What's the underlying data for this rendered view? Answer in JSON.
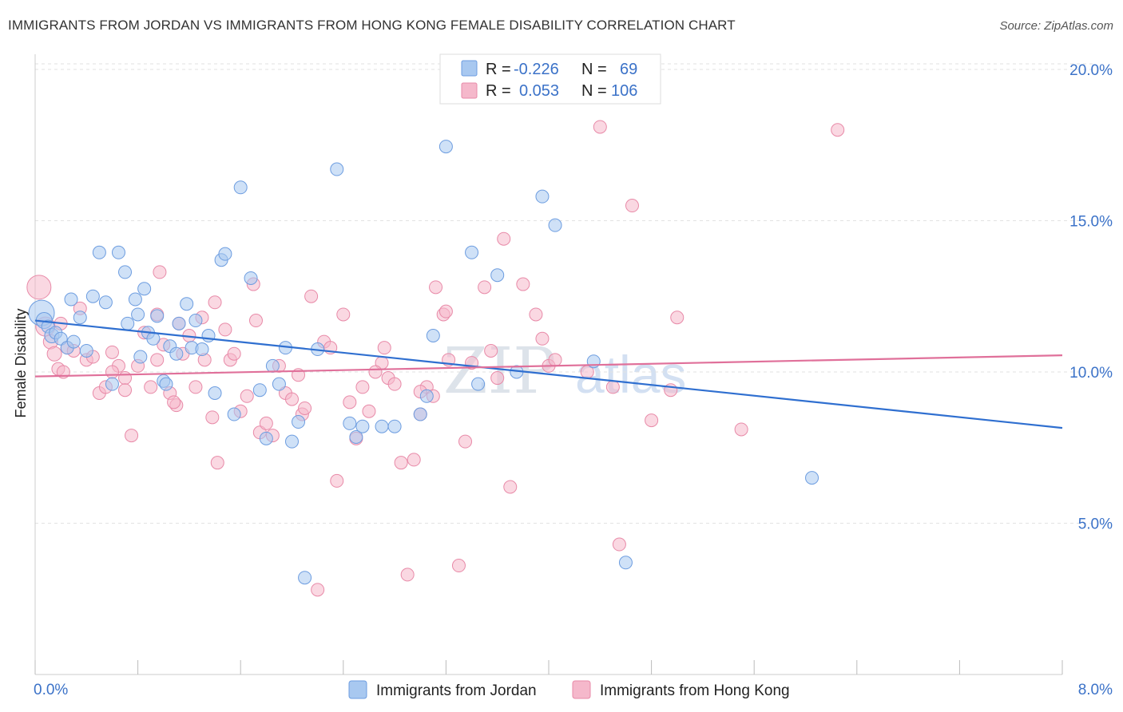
{
  "header": {
    "title": "IMMIGRANTS FROM JORDAN VS IMMIGRANTS FROM HONG KONG FEMALE DISABILITY CORRELATION CHART",
    "source": "Source: ZipAtlas.com"
  },
  "watermark": {
    "zip": "ZIP",
    "atlas": "atlas"
  },
  "colors": {
    "blue_fill": "#a8c8f0",
    "blue_stroke": "#6d9de0",
    "blue_line": "#2f6fd0",
    "pink_fill": "#f5b8cb",
    "pink_stroke": "#e88aa8",
    "pink_line": "#e0709a",
    "tick_text": "#3b72c8"
  },
  "legend": {
    "rows": [
      {
        "r_label": "R =",
        "r_value": "-0.226",
        "n_label": "N =",
        "n_value": "69"
      },
      {
        "r_label": "R =",
        "r_value": "0.053",
        "n_label": "N =",
        "n_value": "106"
      }
    ]
  },
  "chart_data": {
    "type": "scatter",
    "title": "IMMIGRANTS FROM JORDAN VS IMMIGRANTS FROM HONG KONG FEMALE DISABILITY CORRELATION CHART",
    "xlabel": "",
    "ylabel": "Female Disability",
    "xlim": [
      0,
      8
    ],
    "ylim": [
      0,
      20.5
    ],
    "x_tick_labels": [
      {
        "value": 0,
        "label": "0.0%"
      },
      {
        "value": 8,
        "label": "8.0%"
      }
    ],
    "y_tick_labels": [
      {
        "value": 5,
        "label": "5.0%"
      },
      {
        "value": 10,
        "label": "10.0%"
      },
      {
        "value": 15,
        "label": "15.0%"
      },
      {
        "value": 20,
        "label": "20.0%"
      }
    ],
    "grid": "horizontal-dashed",
    "legend_position": "top-center",
    "series": [
      {
        "name": "Immigrants from Jordan",
        "color": "blue",
        "trend": {
          "x": [
            0,
            8
          ],
          "y": [
            11.7,
            8.15
          ]
        },
        "points": [
          [
            0.05,
            11.95,
            16
          ],
          [
            0.07,
            11.7,
            10
          ],
          [
            0.1,
            11.5,
            8
          ],
          [
            0.13,
            11.2,
            9
          ],
          [
            0.16,
            11.3,
            8
          ],
          [
            0.2,
            11.1,
            8
          ],
          [
            0.25,
            10.8,
            8
          ],
          [
            0.28,
            12.4,
            8
          ],
          [
            0.3,
            11.0,
            8
          ],
          [
            0.35,
            11.8,
            8
          ],
          [
            0.4,
            10.7,
            8
          ],
          [
            0.45,
            12.5,
            8
          ],
          [
            0.5,
            13.95,
            8
          ],
          [
            0.55,
            12.3,
            8
          ],
          [
            0.6,
            9.6,
            8
          ],
          [
            0.65,
            13.95,
            8
          ],
          [
            0.7,
            13.3,
            8
          ],
          [
            0.72,
            11.6,
            8
          ],
          [
            0.78,
            12.4,
            8
          ],
          [
            0.8,
            11.9,
            8
          ],
          [
            0.82,
            10.5,
            8
          ],
          [
            0.85,
            12.75,
            8
          ],
          [
            0.88,
            11.3,
            8
          ],
          [
            0.92,
            11.1,
            8
          ],
          [
            0.95,
            11.85,
            8
          ],
          [
            1.0,
            9.7,
            8
          ],
          [
            1.02,
            9.6,
            8
          ],
          [
            1.05,
            10.85,
            8
          ],
          [
            1.1,
            10.6,
            8
          ],
          [
            1.12,
            11.6,
            8
          ],
          [
            1.18,
            12.25,
            8
          ],
          [
            1.22,
            10.8,
            8
          ],
          [
            1.25,
            11.7,
            8
          ],
          [
            1.3,
            10.75,
            8
          ],
          [
            1.35,
            11.2,
            8
          ],
          [
            1.4,
            9.3,
            8
          ],
          [
            1.45,
            13.7,
            8
          ],
          [
            1.48,
            13.9,
            8
          ],
          [
            1.55,
            8.6,
            8
          ],
          [
            1.6,
            16.1,
            8
          ],
          [
            1.68,
            13.1,
            8
          ],
          [
            1.75,
            9.4,
            8
          ],
          [
            1.8,
            7.8,
            8
          ],
          [
            1.85,
            10.2,
            8
          ],
          [
            1.9,
            9.6,
            8
          ],
          [
            1.95,
            10.8,
            8
          ],
          [
            2.0,
            7.7,
            8
          ],
          [
            2.05,
            8.35,
            8
          ],
          [
            2.1,
            3.2,
            8
          ],
          [
            2.2,
            10.75,
            8
          ],
          [
            2.35,
            16.7,
            8
          ],
          [
            2.45,
            8.3,
            8
          ],
          [
            2.5,
            7.85,
            8
          ],
          [
            2.55,
            8.2,
            8
          ],
          [
            2.7,
            8.2,
            8
          ],
          [
            2.8,
            8.2,
            8
          ],
          [
            3.0,
            8.6,
            8
          ],
          [
            3.05,
            9.2,
            8
          ],
          [
            3.1,
            11.2,
            8
          ],
          [
            3.2,
            17.45,
            8
          ],
          [
            3.4,
            13.95,
            8
          ],
          [
            3.45,
            9.6,
            8
          ],
          [
            3.6,
            13.2,
            8
          ],
          [
            3.75,
            10.0,
            8
          ],
          [
            3.95,
            15.8,
            8
          ],
          [
            4.05,
            14.85,
            8
          ],
          [
            4.35,
            10.35,
            8
          ],
          [
            4.6,
            3.7,
            8
          ],
          [
            6.05,
            6.5,
            8
          ]
        ]
      },
      {
        "name": "Immigrants from Hong Kong",
        "color": "pink",
        "trend": {
          "x": [
            0,
            8
          ],
          "y": [
            9.85,
            10.55
          ]
        },
        "points": [
          [
            0.03,
            12.8,
            15
          ],
          [
            0.08,
            11.5,
            12
          ],
          [
            0.12,
            11.0,
            9
          ],
          [
            0.15,
            10.6,
            9
          ],
          [
            0.18,
            10.1,
            8
          ],
          [
            0.22,
            10.0,
            8
          ],
          [
            0.25,
            10.8,
            8
          ],
          [
            0.3,
            10.7,
            8
          ],
          [
            0.35,
            12.1,
            8
          ],
          [
            0.4,
            10.4,
            8
          ],
          [
            0.45,
            10.5,
            8
          ],
          [
            0.5,
            9.3,
            8
          ],
          [
            0.55,
            9.5,
            8
          ],
          [
            0.6,
            10.65,
            8
          ],
          [
            0.65,
            10.2,
            8
          ],
          [
            0.7,
            9.8,
            8
          ],
          [
            0.75,
            7.9,
            8
          ],
          [
            0.8,
            10.2,
            8
          ],
          [
            0.85,
            11.3,
            8
          ],
          [
            0.9,
            9.5,
            8
          ],
          [
            0.95,
            11.9,
            8
          ],
          [
            0.97,
            13.3,
            8
          ],
          [
            1.0,
            10.9,
            8
          ],
          [
            1.05,
            9.3,
            8
          ],
          [
            1.1,
            8.9,
            8
          ],
          [
            1.12,
            11.6,
            8
          ],
          [
            1.15,
            10.6,
            8
          ],
          [
            1.2,
            11.2,
            8
          ],
          [
            1.25,
            9.5,
            8
          ],
          [
            1.3,
            11.8,
            8
          ],
          [
            1.32,
            10.4,
            8
          ],
          [
            1.38,
            8.5,
            8
          ],
          [
            1.4,
            12.3,
            8
          ],
          [
            1.42,
            7.0,
            8
          ],
          [
            1.48,
            11.4,
            8
          ],
          [
            1.52,
            10.4,
            8
          ],
          [
            1.55,
            10.6,
            8
          ],
          [
            1.6,
            8.7,
            8
          ],
          [
            1.65,
            9.2,
            8
          ],
          [
            1.7,
            12.9,
            8
          ],
          [
            1.72,
            11.7,
            8
          ],
          [
            1.75,
            8.0,
            8
          ],
          [
            1.8,
            8.3,
            8
          ],
          [
            1.85,
            7.9,
            8
          ],
          [
            1.9,
            10.2,
            8
          ],
          [
            1.95,
            9.3,
            8
          ],
          [
            2.0,
            9.1,
            8
          ],
          [
            2.05,
            9.9,
            8
          ],
          [
            2.08,
            8.6,
            8
          ],
          [
            2.1,
            8.8,
            8
          ],
          [
            2.15,
            12.5,
            8
          ],
          [
            2.2,
            2.8,
            8
          ],
          [
            2.25,
            11.0,
            8
          ],
          [
            2.3,
            10.8,
            8
          ],
          [
            2.35,
            6.4,
            8
          ],
          [
            2.4,
            11.9,
            8
          ],
          [
            2.45,
            9.0,
            8
          ],
          [
            2.5,
            7.8,
            8
          ],
          [
            2.55,
            9.5,
            8
          ],
          [
            2.6,
            8.7,
            8
          ],
          [
            2.7,
            10.3,
            8
          ],
          [
            2.72,
            10.8,
            8
          ],
          [
            2.75,
            9.8,
            8
          ],
          [
            2.8,
            9.6,
            8
          ],
          [
            2.85,
            7.0,
            8
          ],
          [
            2.9,
            3.3,
            8
          ],
          [
            2.95,
            7.1,
            8
          ],
          [
            3.0,
            8.6,
            8
          ],
          [
            3.05,
            9.5,
            8
          ],
          [
            3.1,
            9.2,
            8
          ],
          [
            3.12,
            12.8,
            8
          ],
          [
            3.18,
            11.9,
            8
          ],
          [
            3.2,
            12.0,
            8
          ],
          [
            3.22,
            10.4,
            8
          ],
          [
            3.3,
            3.6,
            8
          ],
          [
            3.35,
            7.7,
            8
          ],
          [
            3.4,
            10.3,
            8
          ],
          [
            3.5,
            12.8,
            8
          ],
          [
            3.55,
            10.7,
            8
          ],
          [
            3.6,
            9.8,
            8
          ],
          [
            3.65,
            14.4,
            8
          ],
          [
            3.7,
            6.2,
            8
          ],
          [
            3.8,
            12.9,
            8
          ],
          [
            3.9,
            11.9,
            8
          ],
          [
            3.95,
            11.1,
            8
          ],
          [
            4.0,
            10.2,
            8
          ],
          [
            4.05,
            10.4,
            8
          ],
          [
            4.3,
            10.0,
            8
          ],
          [
            4.4,
            18.1,
            8
          ],
          [
            4.5,
            9.5,
            8
          ],
          [
            4.55,
            4.3,
            8
          ],
          [
            4.65,
            15.5,
            8
          ],
          [
            4.8,
            8.4,
            8
          ],
          [
            4.95,
            9.4,
            8
          ],
          [
            5.0,
            11.8,
            8
          ],
          [
            5.5,
            8.1,
            8
          ],
          [
            6.25,
            18.0,
            8
          ],
          [
            0.6,
            10.0,
            8
          ],
          [
            0.7,
            9.4,
            8
          ],
          [
            1.08,
            9.0,
            8
          ],
          [
            2.65,
            10.0,
            8
          ],
          [
            3.0,
            9.35,
            8
          ],
          [
            0.2,
            11.6,
            8
          ],
          [
            0.95,
            10.4,
            8
          ]
        ]
      }
    ]
  },
  "bottom_legend": {
    "items": [
      {
        "label": "Immigrants from Jordan"
      },
      {
        "label": "Immigrants from Hong Kong"
      }
    ]
  }
}
